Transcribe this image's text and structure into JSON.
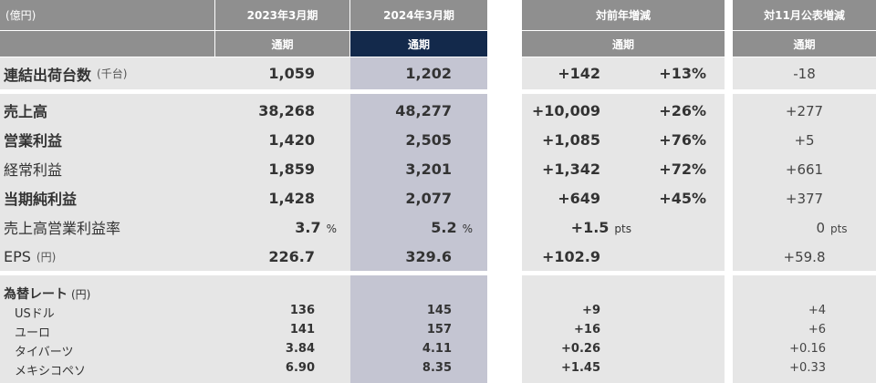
{
  "header": {
    "unit": "(億円)",
    "col_2023": "2023年3月期",
    "col_2024": "2024年3月期",
    "col_yoy": "対前年増減",
    "col_nov": "対11月公表増減",
    "sub_label": "通期"
  },
  "rows": [
    {
      "label": "連結出荷台数",
      "unit": "(千台)",
      "v2023": "1,059",
      "v2024": "1,202",
      "yoy_abs": "+142",
      "yoy_pct": "+13%",
      "nov": "-18"
    },
    {
      "label": "売上高",
      "v2023": "38,268",
      "v2024": "48,277",
      "yoy_abs": "+10,009",
      "yoy_pct": "+26%",
      "nov": "+277"
    },
    {
      "label": "営業利益",
      "v2023": "1,420",
      "v2024": "2,505",
      "yoy_abs": "+1,085",
      "yoy_pct": "+76%",
      "nov": "+5"
    },
    {
      "label": "経常利益",
      "v2023": "1,859",
      "v2024": "3,201",
      "yoy_abs": "+1,342",
      "yoy_pct": "+72%",
      "nov": "+661"
    },
    {
      "label": "当期純利益",
      "v2023": "1,428",
      "v2024": "2,077",
      "yoy_abs": "+649",
      "yoy_pct": "+45%",
      "nov": "+377"
    },
    {
      "label": "売上高営業利益率",
      "v2023": "3.7",
      "v2023_unit": "%",
      "v2024": "5.2",
      "v2024_unit": "%",
      "yoy_abs": "+1.5",
      "yoy_unit": "pts",
      "nov": "0",
      "nov_unit": "pts"
    },
    {
      "label": "EPS",
      "unit": "(円)",
      "v2023": "226.7",
      "v2024": "329.6",
      "yoy_abs": "+102.9",
      "nov": "+59.8"
    }
  ],
  "fx": {
    "title": "為替レート",
    "unit": "(円)",
    "items": [
      {
        "label": "USドル",
        "v2023": "136",
        "v2024": "145",
        "yoy": "+9",
        "nov": "+4"
      },
      {
        "label": "ユーロ",
        "v2023": "141",
        "v2024": "157",
        "yoy": "+16",
        "nov": "+6"
      },
      {
        "label": "タイバーツ",
        "v2023": "3.84",
        "v2024": "4.11",
        "yoy": "+0.26",
        "nov": "+0.16"
      },
      {
        "label": "メキシコペソ",
        "v2023": "6.90",
        "v2024": "8.35",
        "yoy": "+1.45",
        "nov": "+0.33"
      }
    ]
  }
}
